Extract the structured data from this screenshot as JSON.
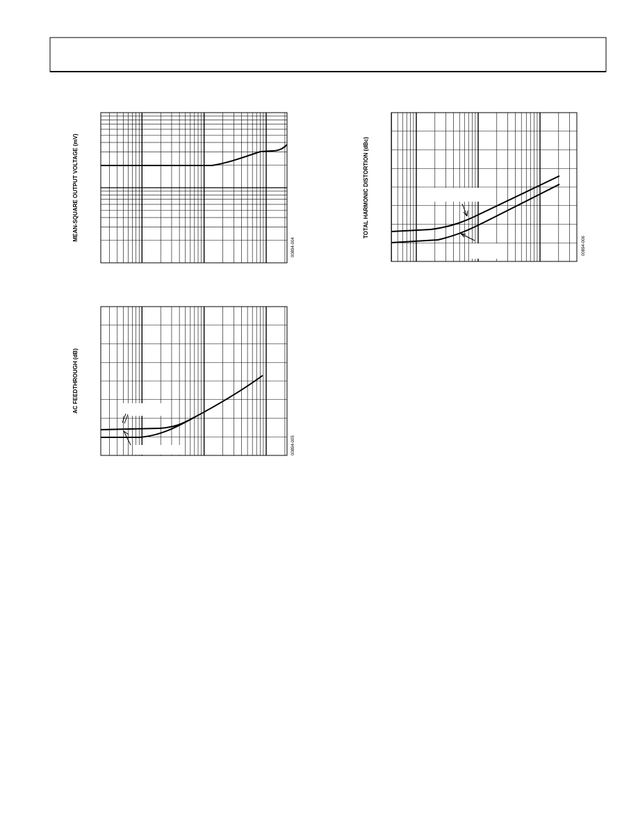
{
  "figures": [
    {
      "y_label": "MEAN-SQUARE OUTPUT VOLTAGE (mV)",
      "figure_code": "00894-004"
    },
    {
      "y_label": "AC FEEDTHROUGH (dB)",
      "figure_code": "00894-005"
    },
    {
      "y_label": "TOTAL HARMONIC DISTORTION (dBc)",
      "figure_code": "00894-006"
    }
  ]
}
